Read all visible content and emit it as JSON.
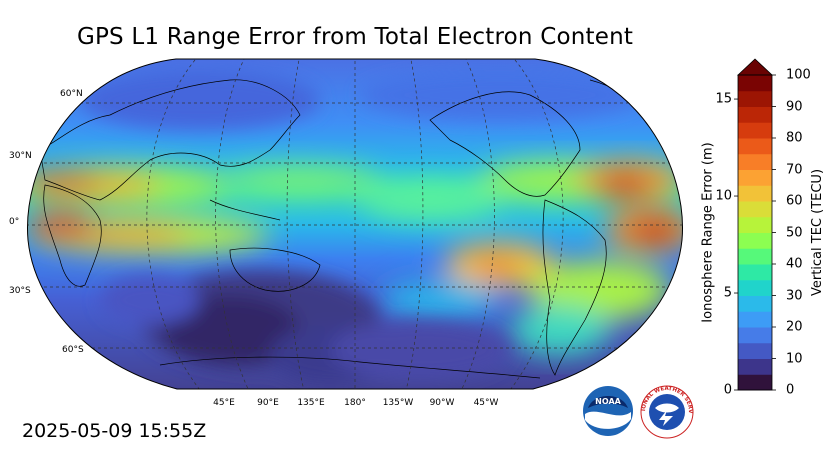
{
  "title": "GPS L1 Range Error from Total Electron Content",
  "timestamp": "2025-05-09 15:55Z",
  "map": {
    "projection": "Robinson",
    "central_longitude": 180,
    "lat_labels": [
      "60°N",
      "30°N",
      "0°",
      "30°S",
      "60°S"
    ],
    "lon_labels": [
      "45°E",
      "90°E",
      "135°E",
      "180°",
      "135°W",
      "90°W",
      "45°W"
    ],
    "gridlines": "dashed"
  },
  "colorbar": {
    "left_axis": {
      "label": "Ionosphere Range Error (m)",
      "ticks": [
        "0",
        "5",
        "10",
        "15"
      ]
    },
    "right_axis": {
      "label": "Vertical TEC (TECU)",
      "ticks": [
        "0",
        "10",
        "20",
        "30",
        "40",
        "50",
        "60",
        "70",
        "80",
        "90",
        "100"
      ]
    },
    "extend": "max",
    "colormap": "turbo"
  },
  "logos": {
    "noaa_text": "NOAA",
    "nws_text": "NATIONAL WEATHER SERVICE"
  }
}
